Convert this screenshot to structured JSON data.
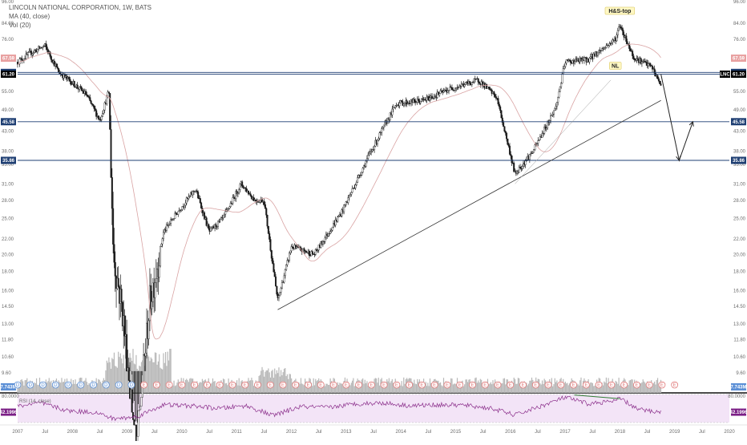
{
  "header": {
    "title": "LINCOLN NATIONAL CORPORATION, 1W, BATS",
    "ma_label": "MA (40, close)",
    "vol_label": "Vol (20)",
    "rsi_label": "RSI (14, close)"
  },
  "colors": {
    "candle": "#1a1a1a",
    "ma": "#d9a3a3",
    "volume": "#b8b8b8",
    "level_line": "#1f3f73",
    "trend_line": "#333333",
    "rsi_line": "#8a2d8a",
    "rsi_band": "#f3e4f7",
    "tag_blue": "#1f3f73",
    "tag_pink": "#e8a0a0",
    "tag_black": "#000000",
    "tag_purple": "#7b1f86",
    "earn_blue": "#5b8fd6",
    "earn_red": "#e07a7a"
  },
  "chart_data": {
    "type": "candlestick",
    "title": "LINCOLN NATIONAL CORPORATION, 1W, BATS",
    "y_scale": "log",
    "ylim": [
      9.6,
      96
    ],
    "y_ticks": [
      "96.00",
      "84.00",
      "76.00",
      "67.00",
      "61.00",
      "55.00",
      "49.00",
      "43.00",
      "38.00",
      "35.00",
      "31.00",
      "28.00",
      "25.00",
      "22.00",
      "20.00",
      "18.00",
      "16.00",
      "14.50",
      "13.00",
      "11.80",
      "10.60",
      "9.60"
    ],
    "x_ticks": [
      "2007",
      "Jul",
      "2008",
      "Jul",
      "2009",
      "Jul",
      "2010",
      "Jul",
      "2011",
      "Jul",
      "2012",
      "Jul",
      "2013",
      "Jul",
      "2014",
      "Jul",
      "2015",
      "Jul",
      "2016",
      "Jul",
      "2017",
      "Jul",
      "2018",
      "Jul",
      "2019",
      "Jul",
      "2020"
    ],
    "xlim": [
      "2007-01",
      "2020-01"
    ],
    "price_path": [
      [
        "2007-01",
        66
      ],
      [
        "2007-04",
        70
      ],
      [
        "2007-07",
        73
      ],
      [
        "2007-10",
        62
      ],
      [
        "2008-01",
        58
      ],
      [
        "2008-04",
        54
      ],
      [
        "2008-07",
        46
      ],
      [
        "2008-09",
        55
      ],
      [
        "2008-10",
        20
      ],
      [
        "2008-12",
        14
      ],
      [
        "2009-03",
        6
      ],
      [
        "2009-06",
        15
      ],
      [
        "2009-09",
        23
      ],
      [
        "2009-12",
        26
      ],
      [
        "2010-04",
        30
      ],
      [
        "2010-07",
        23
      ],
      [
        "2010-10",
        25
      ],
      [
        "2011-02",
        31
      ],
      [
        "2011-05",
        28
      ],
      [
        "2011-07",
        28
      ],
      [
        "2011-10",
        15
      ],
      [
        "2012-01",
        21
      ],
      [
        "2012-06",
        20
      ],
      [
        "2012-12",
        26
      ],
      [
        "2013-06",
        37
      ],
      [
        "2013-12",
        51
      ],
      [
        "2014-06",
        52
      ],
      [
        "2014-12",
        56
      ],
      [
        "2015-06",
        59
      ],
      [
        "2015-10",
        53
      ],
      [
        "2016-02",
        33
      ],
      [
        "2016-06",
        38
      ],
      [
        "2016-11",
        50
      ],
      [
        "2017-01",
        66
      ],
      [
        "2017-06",
        67
      ],
      [
        "2017-12",
        76
      ],
      [
        "2018-01",
        83
      ],
      [
        "2018-04",
        68
      ],
      [
        "2018-08",
        64
      ],
      [
        "2018-10",
        57
      ]
    ],
    "series": [
      {
        "name": "MA (40, close)"
      },
      {
        "name": "Vol (20)"
      }
    ],
    "horizontal_levels": [
      61.87,
      61.2,
      45.58,
      35.86
    ],
    "price_tags": [
      {
        "value": 67.59,
        "text": "67.59",
        "color": "pink"
      },
      {
        "value": 61.87,
        "text": "61.87",
        "color": "blue"
      },
      {
        "value": 61.2,
        "text": "61.20",
        "color": "black"
      },
      {
        "value": 45.58,
        "text": "45.58",
        "color": "blue"
      },
      {
        "value": 35.86,
        "text": "35.86",
        "color": "blue"
      }
    ],
    "right_symbol": "LNC",
    "annotations": [
      {
        "text": "H&S-top",
        "x": "2018-01",
        "y": 90
      },
      {
        "text": "NL",
        "x": "2017-12",
        "y": 64
      }
    ],
    "trend_line": {
      "from": [
        "2011-10",
        14.2
      ],
      "to": [
        "2018-10",
        52
      ]
    },
    "projection_path": [
      [
        "2018-10",
        61.2
      ],
      [
        "2019-02",
        35.86
      ],
      [
        "2019-05",
        45.58
      ]
    ],
    "volume_value_text": "7.743M",
    "earnings_markers": [
      "D",
      "D",
      "D",
      "D",
      "D",
      "D",
      "D",
      "D",
      "D",
      "D",
      "E",
      "E",
      "E",
      "E",
      "E",
      "E",
      "E",
      "E",
      "E",
      "E",
      "E",
      "E",
      "E",
      "E",
      "E",
      "E",
      "E",
      "E",
      "E",
      "E",
      "E",
      "E",
      "E",
      "E",
      "E",
      "E",
      "E",
      "E",
      "E",
      "E",
      "E",
      "E",
      "E",
      "E",
      "E",
      "E",
      "E",
      "E",
      "E",
      "E",
      "E",
      "E",
      "E"
    ],
    "rsi": {
      "name": "RSI (14, close)",
      "value_text": "42.1996",
      "top_text": "80.0000",
      "ylim": [
        20,
        80
      ],
      "path": [
        [
          "2007-01",
          55
        ],
        [
          "2007-06",
          62
        ],
        [
          "2007-12",
          45
        ],
        [
          "2008-06",
          42
        ],
        [
          "2008-10",
          28
        ],
        [
          "2009-03",
          32
        ],
        [
          "2009-09",
          58
        ],
        [
          "2010-04",
          55
        ],
        [
          "2010-09",
          50
        ],
        [
          "2011-03",
          56
        ],
        [
          "2011-09",
          35
        ],
        [
          "2012-03",
          54
        ],
        [
          "2012-09",
          52
        ],
        [
          "2013-03",
          60
        ],
        [
          "2013-09",
          62
        ],
        [
          "2014-03",
          56
        ],
        [
          "2014-09",
          58
        ],
        [
          "2015-03",
          57
        ],
        [
          "2015-09",
          50
        ],
        [
          "2016-02",
          36
        ],
        [
          "2016-08",
          56
        ],
        [
          "2017-01",
          74
        ],
        [
          "2017-06",
          60
        ],
        [
          "2017-12",
          66
        ],
        [
          "2018-01",
          72
        ],
        [
          "2018-05",
          48
        ],
        [
          "2018-10",
          42
        ]
      ],
      "divergence": {
        "from": [
          "2017-03",
          79
        ],
        "to": [
          "2018-01",
          71
        ]
      }
    }
  }
}
